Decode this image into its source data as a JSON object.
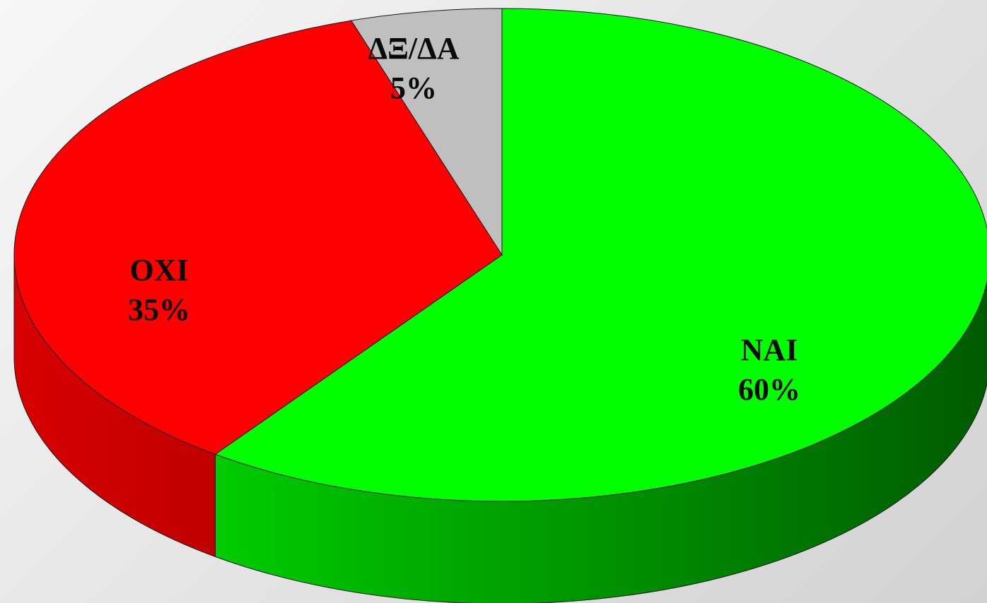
{
  "chart_data": {
    "type": "pie",
    "style": "3d",
    "start_angle_from_top_deg": 0,
    "direction": "clockwise",
    "slices": [
      {
        "label": "NAI",
        "value": 60,
        "value_label": "60%",
        "color": "#00ff00",
        "side_color": "#006400"
      },
      {
        "label": "OXI",
        "value": 35,
        "value_label": "35%",
        "color": "#ff0000",
        "side_color": "#c80000"
      },
      {
        "label": "ΔΞ/ΔΑ",
        "value": 5,
        "value_label": "5%",
        "color": "#bfbfbf",
        "side_color": "#8c8c8c"
      }
    ],
    "legend": "none"
  }
}
